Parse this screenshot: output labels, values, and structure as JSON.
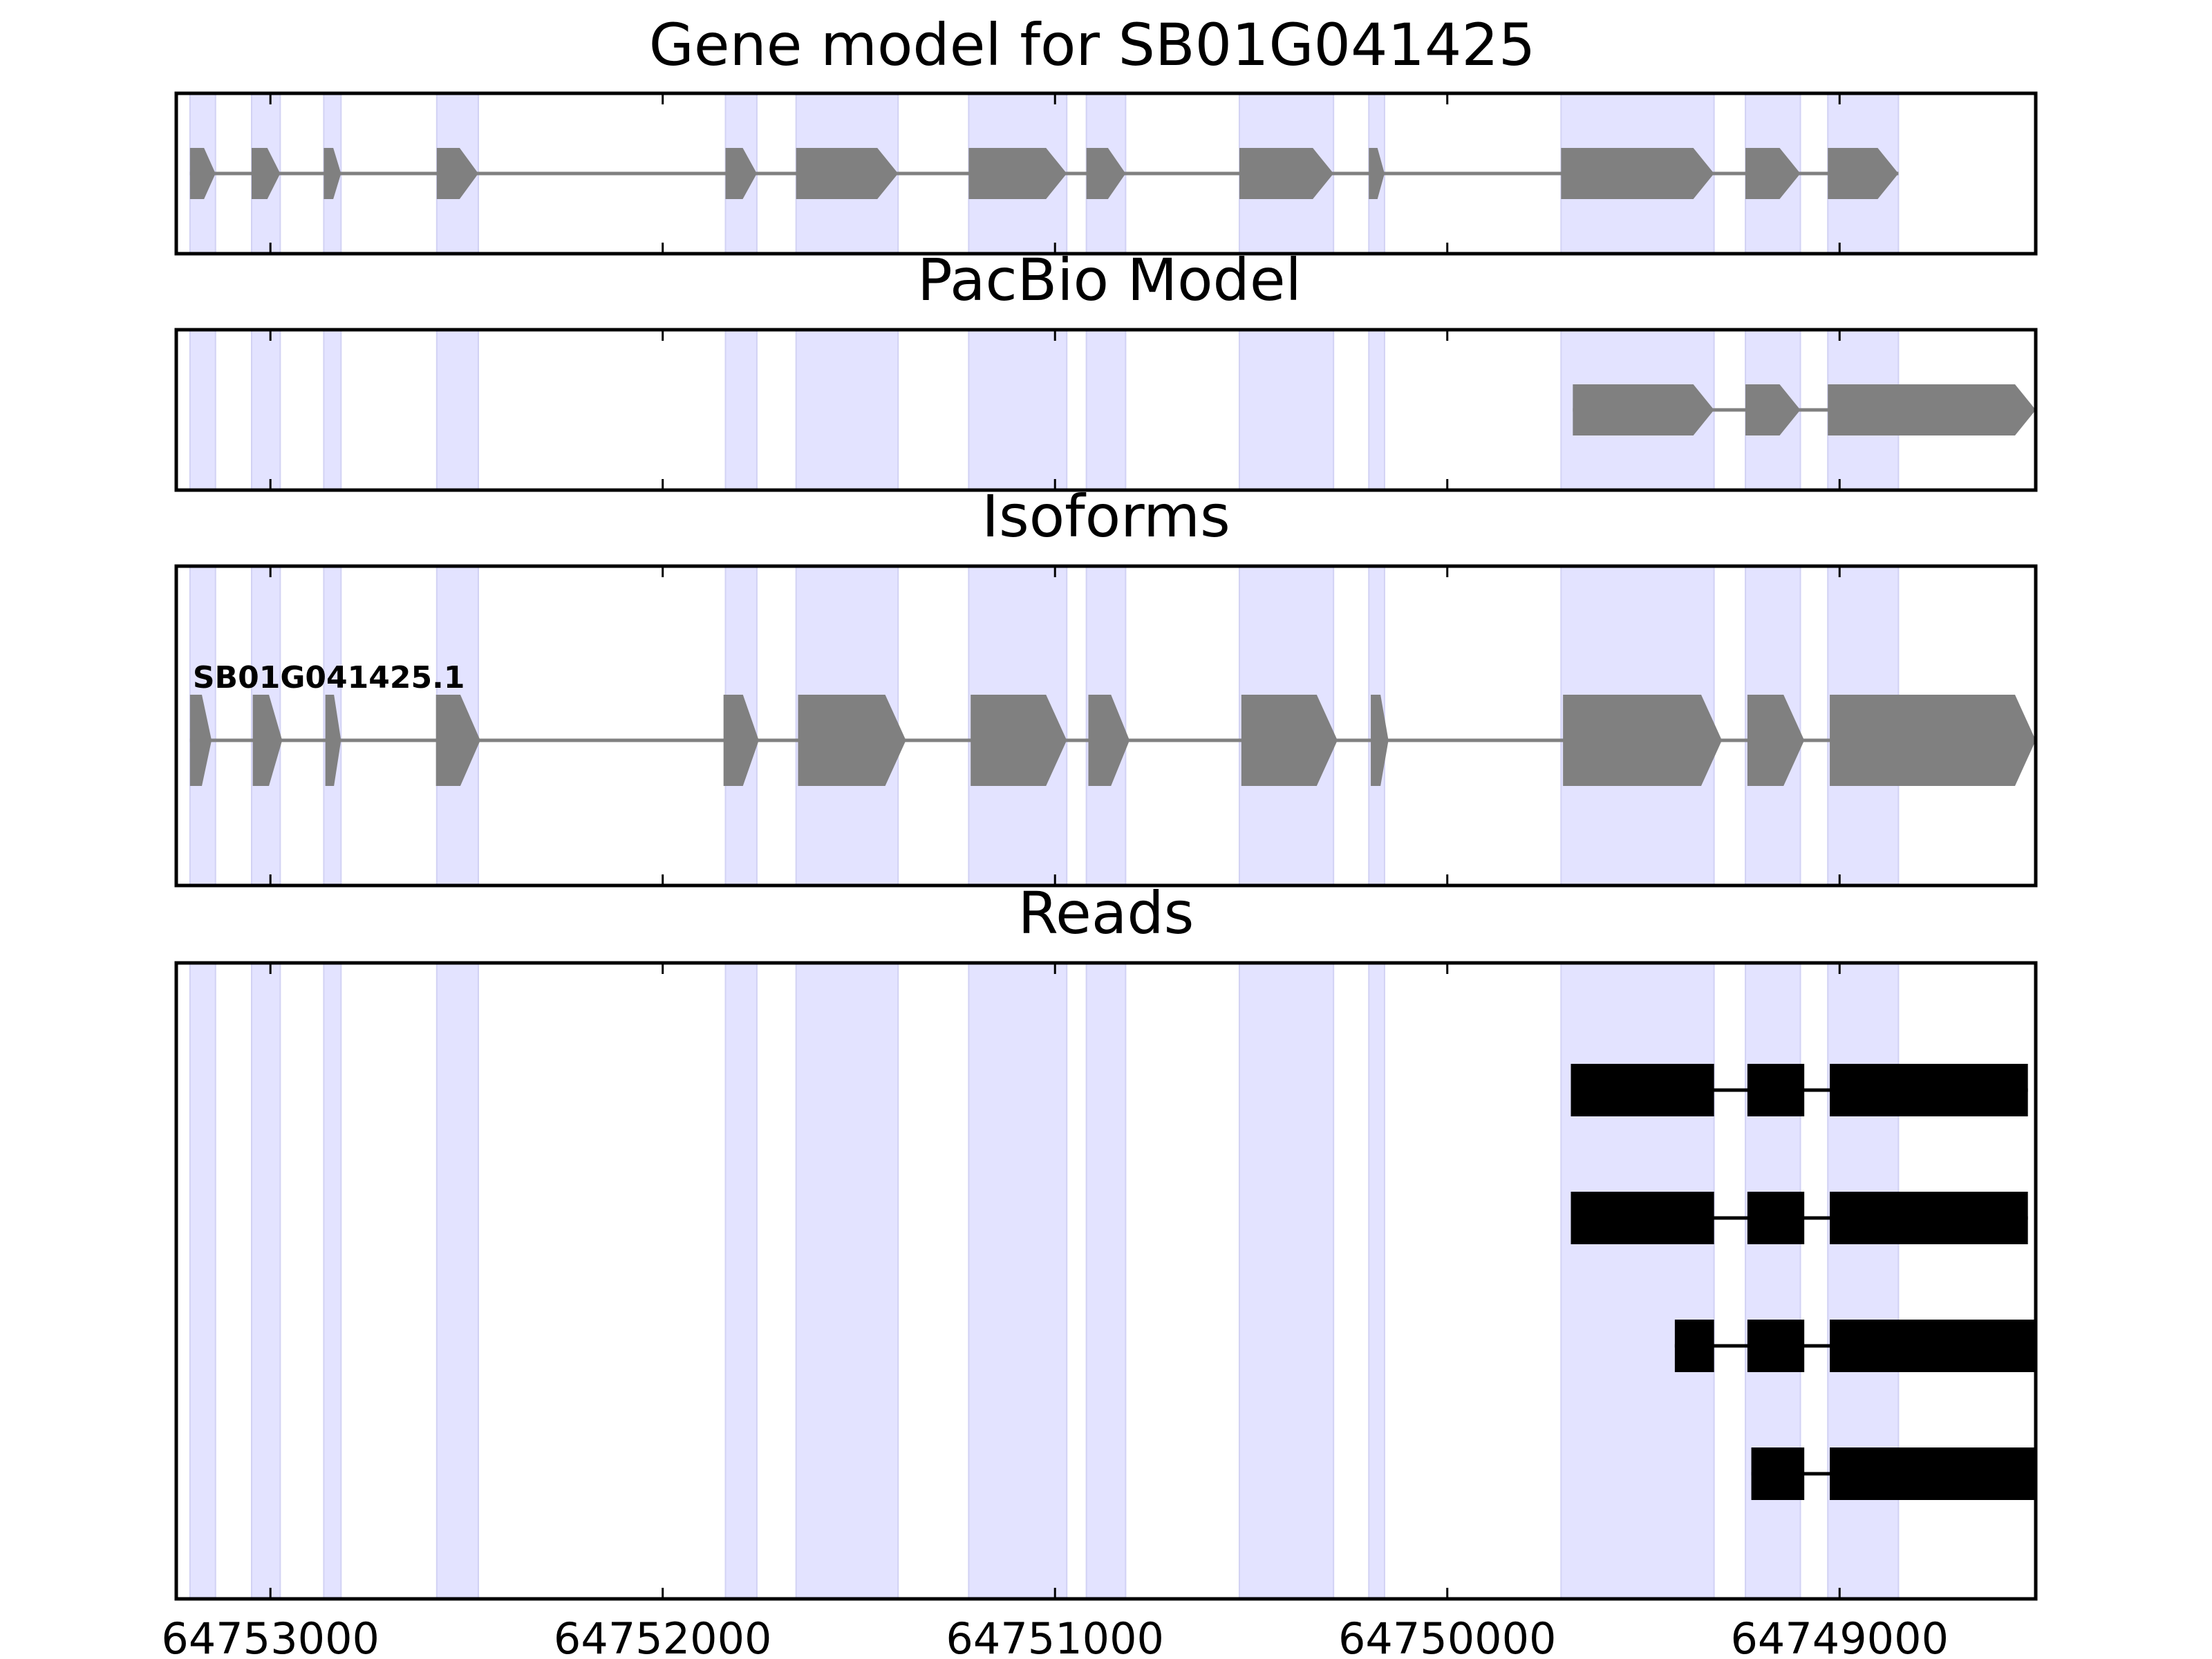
{
  "figure": {
    "x_reversed": true,
    "xlim": [
      64753240,
      64748500
    ],
    "xticks": [
      64753000,
      64752000,
      64751000,
      64750000,
      64749000
    ],
    "xtick_labels": [
      "64753000",
      "64752000",
      "64751000",
      "64750000",
      "64749000"
    ]
  },
  "colors": {
    "exon_region": "#e3e3ff",
    "exon_region_edge": "#d2d2f4",
    "gene_feature": "#808080",
    "read": "#000000",
    "axes": "#000000"
  },
  "chart_data": [
    {
      "panel": "gene-model",
      "type": "gene-track",
      "title": "Gene model for SB01G041425",
      "strand": "-",
      "exons": [
        [
          64753205,
          64753140
        ],
        [
          64753048,
          64752975
        ],
        [
          64752864,
          64752820
        ],
        [
          64752576,
          64752470
        ],
        [
          64751840,
          64751760
        ],
        [
          64751660,
          64751400
        ],
        [
          64751220,
          64750970
        ],
        [
          64750920,
          64750820
        ],
        [
          64750530,
          64750290
        ],
        [
          64750200,
          64750160
        ],
        [
          64749710,
          64749320
        ],
        [
          64749240,
          64749100
        ],
        [
          64749030,
          64748850
        ]
      ]
    },
    {
      "panel": "pacbio-model",
      "type": "gene-track",
      "title": "PacBio Model",
      "strand": "-",
      "exons": [
        [
          64749680,
          64749320
        ],
        [
          64749240,
          64749100
        ],
        [
          64749030,
          64748500
        ]
      ]
    },
    {
      "panel": "isoforms",
      "type": "gene-track",
      "title": "Isoforms",
      "strand": "-",
      "isoforms": [
        {
          "name": "SB01G041425.1",
          "exons": [
            [
              64753205,
              64753150
            ],
            [
              64753045,
              64752970
            ],
            [
              64752860,
              64752820
            ],
            [
              64752578,
              64752465
            ],
            [
              64751845,
              64751755
            ],
            [
              64751655,
              64751380
            ],
            [
              64751215,
              64750970
            ],
            [
              64750915,
              64750810
            ],
            [
              64750525,
              64750280
            ],
            [
              64750195,
              64750150
            ],
            [
              64749705,
              64749300
            ],
            [
              64749235,
              64749090
            ],
            [
              64749025,
              64748500
            ]
          ]
        }
      ]
    },
    {
      "panel": "reads",
      "type": "read-track",
      "title": "Reads",
      "reads": [
        [
          [
            64749685,
            64749320
          ],
          [
            64749235,
            64749090
          ],
          [
            64749025,
            64748520
          ]
        ],
        [
          [
            64749685,
            64749320
          ],
          [
            64749235,
            64749090
          ],
          [
            64749025,
            64748520
          ]
        ],
        [
          [
            64749420,
            64749320
          ],
          [
            64749235,
            64749090
          ],
          [
            64749025,
            64748500
          ]
        ],
        [
          [
            64749225,
            64749090
          ],
          [
            64749025,
            64748500
          ]
        ]
      ]
    }
  ]
}
